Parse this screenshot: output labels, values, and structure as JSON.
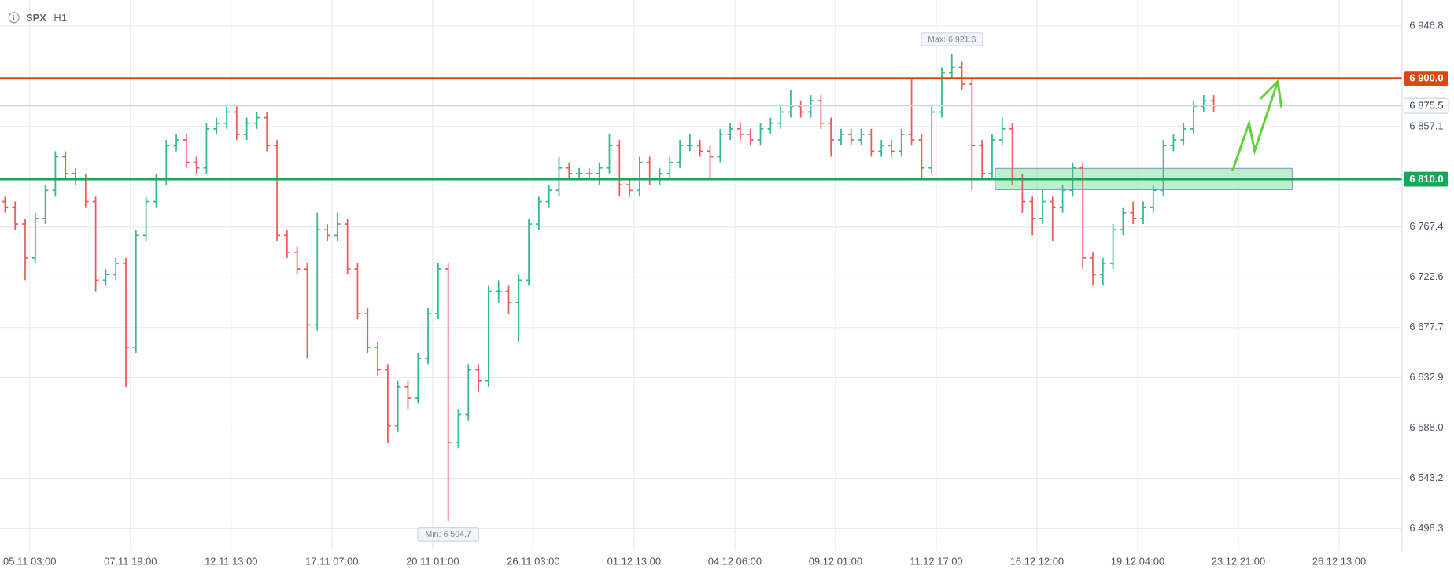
{
  "chart_data": {
    "type": "ohlc",
    "title": "SPX",
    "subtitle": "H1",
    "up_color": "#35b894",
    "down_color": "#ef5b5b",
    "open": [
      6790,
      6785,
      6770,
      6740,
      6775,
      6800,
      6830,
      6815,
      6810,
      6790,
      6720,
      6725,
      6735,
      6660,
      6760,
      6790,
      6810,
      6840,
      6845,
      6825,
      6820,
      6855,
      6860,
      6870,
      6850,
      6860,
      6865,
      6840,
      6760,
      6745,
      6730,
      6680,
      6765,
      6760,
      6770,
      6730,
      6690,
      6660,
      6640,
      6590,
      6625,
      6615,
      6650,
      6690,
      6730,
      6575,
      6600,
      6640,
      6630,
      6710,
      6710,
      6700,
      6720,
      6770,
      6790,
      6800,
      6820,
      6815,
      6815,
      6815,
      6820,
      6840,
      6805,
      6800,
      6825,
      6810,
      6815,
      6825,
      6840,
      6840,
      6835,
      6830,
      6850,
      6855,
      6850,
      6845,
      6855,
      6860,
      6870,
      6875,
      6870,
      6880,
      6860,
      6845,
      6850,
      6845,
      6850,
      6835,
      6840,
      6835,
      6850,
      6845,
      6820,
      6870,
      6905,
      6910,
      6895,
      6840,
      6815,
      6845,
      6855,
      6810,
      6790,
      6775,
      6790,
      6785,
      6800,
      6820,
      6740,
      6725,
      6735,
      6765,
      6780,
      6775,
      6785,
      6800,
      6840,
      6845,
      6855,
      6875,
      6880
    ],
    "high": [
      6795,
      6790,
      6775,
      6780,
      6805,
      6835,
      6835,
      6820,
      6815,
      6795,
      6730,
      6740,
      6740,
      6765,
      6795,
      6815,
      6845,
      6850,
      6850,
      6830,
      6860,
      6865,
      6875,
      6875,
      6865,
      6870,
      6870,
      6845,
      6765,
      6750,
      6735,
      6780,
      6770,
      6780,
      6775,
      6735,
      6695,
      6665,
      6645,
      6630,
      6630,
      6655,
      6695,
      6735,
      6735,
      6605,
      6645,
      6645,
      6715,
      6720,
      6715,
      6725,
      6775,
      6795,
      6805,
      6830,
      6825,
      6820,
      6820,
      6825,
      6850,
      6845,
      6810,
      6830,
      6830,
      6820,
      6830,
      6845,
      6850,
      6845,
      6840,
      6855,
      6860,
      6860,
      6855,
      6860,
      6865,
      6875,
      6890,
      6880,
      6885,
      6885,
      6865,
      6855,
      6855,
      6855,
      6855,
      6845,
      6845,
      6855,
      6900,
      6850,
      6875,
      6910,
      6921.6,
      6915,
      6900,
      6845,
      6850,
      6865,
      6860,
      6815,
      6795,
      6800,
      6795,
      6805,
      6825,
      6825,
      6745,
      6740,
      6770,
      6785,
      6790,
      6790,
      6805,
      6845,
      6850,
      6860,
      6880,
      6885,
      6885
    ],
    "low": [
      6780,
      6765,
      6720,
      6735,
      6770,
      6795,
      6810,
      6805,
      6785,
      6710,
      6715,
      6720,
      6625,
      6655,
      6755,
      6785,
      6805,
      6835,
      6820,
      6815,
      6815,
      6850,
      6855,
      6845,
      6845,
      6855,
      6835,
      6755,
      6740,
      6725,
      6650,
      6675,
      6755,
      6755,
      6725,
      6685,
      6655,
      6635,
      6575,
      6585,
      6605,
      6610,
      6645,
      6685,
      6504.7,
      6570,
      6595,
      6620,
      6625,
      6700,
      6690,
      6665,
      6715,
      6765,
      6785,
      6795,
      6810,
      6810,
      6810,
      6805,
      6815,
      6795,
      6795,
      6795,
      6805,
      6805,
      6810,
      6820,
      6835,
      6830,
      6810,
      6825,
      6845,
      6845,
      6840,
      6840,
      6850,
      6855,
      6865,
      6865,
      6865,
      6855,
      6830,
      6840,
      6840,
      6840,
      6830,
      6830,
      6830,
      6830,
      6840,
      6810,
      6815,
      6865,
      6900,
      6890,
      6800,
      6810,
      6810,
      6840,
      6805,
      6780,
      6760,
      6770,
      6755,
      6780,
      6795,
      6730,
      6715,
      6715,
      6730,
      6760,
      6770,
      6770,
      6780,
      6795,
      6835,
      6840,
      6850,
      6870,
      6870
    ],
    "close": [
      6785,
      6770,
      6740,
      6775,
      6800,
      6830,
      6815,
      6810,
      6790,
      6720,
      6725,
      6735,
      6660,
      6760,
      6790,
      6810,
      6840,
      6845,
      6825,
      6820,
      6855,
      6860,
      6870,
      6850,
      6860,
      6865,
      6840,
      6760,
      6745,
      6730,
      6680,
      6765,
      6760,
      6770,
      6730,
      6690,
      6660,
      6640,
      6590,
      6625,
      6615,
      6650,
      6690,
      6730,
      6575,
      6600,
      6640,
      6630,
      6710,
      6710,
      6700,
      6720,
      6770,
      6790,
      6800,
      6820,
      6815,
      6815,
      6815,
      6820,
      6840,
      6805,
      6800,
      6825,
      6810,
      6815,
      6825,
      6840,
      6840,
      6835,
      6830,
      6850,
      6855,
      6850,
      6845,
      6855,
      6860,
      6870,
      6875,
      6870,
      6880,
      6860,
      6845,
      6850,
      6845,
      6850,
      6835,
      6840,
      6835,
      6850,
      6845,
      6820,
      6870,
      6905,
      6910,
      6895,
      6840,
      6815,
      6845,
      6855,
      6810,
      6790,
      6775,
      6790,
      6785,
      6800,
      6820,
      6740,
      6725,
      6735,
      6765,
      6780,
      6775,
      6785,
      6800,
      6840,
      6845,
      6855,
      6875,
      6880,
      6875.5
    ],
    "xlim": [
      -0.5,
      138.7
    ],
    "xticks": [
      {
        "value": 2.45,
        "label": "05.11 03:00"
      },
      {
        "value": 12.45,
        "label": "07.11 19:00"
      },
      {
        "value": 22.45,
        "label": "12.11 13:00"
      },
      {
        "value": 32.45,
        "label": "17.11 07:00"
      },
      {
        "value": 42.45,
        "label": "20.11 01:00"
      },
      {
        "value": 52.45,
        "label": "26.11 03:00"
      },
      {
        "value": 62.45,
        "label": "01.12 13:00"
      },
      {
        "value": 72.45,
        "label": "04.12 06:00"
      },
      {
        "value": 82.45,
        "label": "09.12 01:00"
      },
      {
        "value": 92.45,
        "label": "11.12 17:00"
      },
      {
        "value": 102.45,
        "label": "16.12 12:00"
      },
      {
        "value": 112.45,
        "label": "19.12 04:00"
      },
      {
        "value": 122.45,
        "label": "23.12 21:00"
      },
      {
        "value": 132.45,
        "label": "26.12 13:00"
      }
    ],
    "ylim": [
      6478.5,
      6969.9
    ],
    "yticks": [
      {
        "value": 6498.3,
        "label": "6 498.3"
      },
      {
        "value": 6543.2,
        "label": "6 543.2"
      },
      {
        "value": 6588.0,
        "label": "6 588.0"
      },
      {
        "value": 6632.9,
        "label": "6 632.9"
      },
      {
        "value": 6677.7,
        "label": "6 677.7"
      },
      {
        "value": 6722.6,
        "label": "6 722.6"
      },
      {
        "value": 6767.4,
        "label": "6 767.4"
      },
      {
        "value": 6857.1,
        "label": "6 857.1"
      },
      {
        "value": 6946.8,
        "label": "6 946.8"
      }
    ],
    "grid": true,
    "levels": [
      {
        "value": 6900,
        "label": "6 900.0",
        "color": "#d9480f"
      },
      {
        "value": 6810,
        "label": "6 810.0",
        "color": "#14a85a"
      }
    ],
    "last_price": {
      "value": 6875.5,
      "label": "6 875.5"
    },
    "max_label": {
      "value": 6921.6,
      "label": "Max: 6 921.6",
      "bar": 94
    },
    "min_label": {
      "value": 6504.7,
      "label": "Min: 6 504.7",
      "bar": 44
    },
    "zone": {
      "x": [
        98.3,
        127.8
      ],
      "y": [
        6800.6,
        6819.6
      ],
      "color": "#7ee09a"
    }
  }
}
